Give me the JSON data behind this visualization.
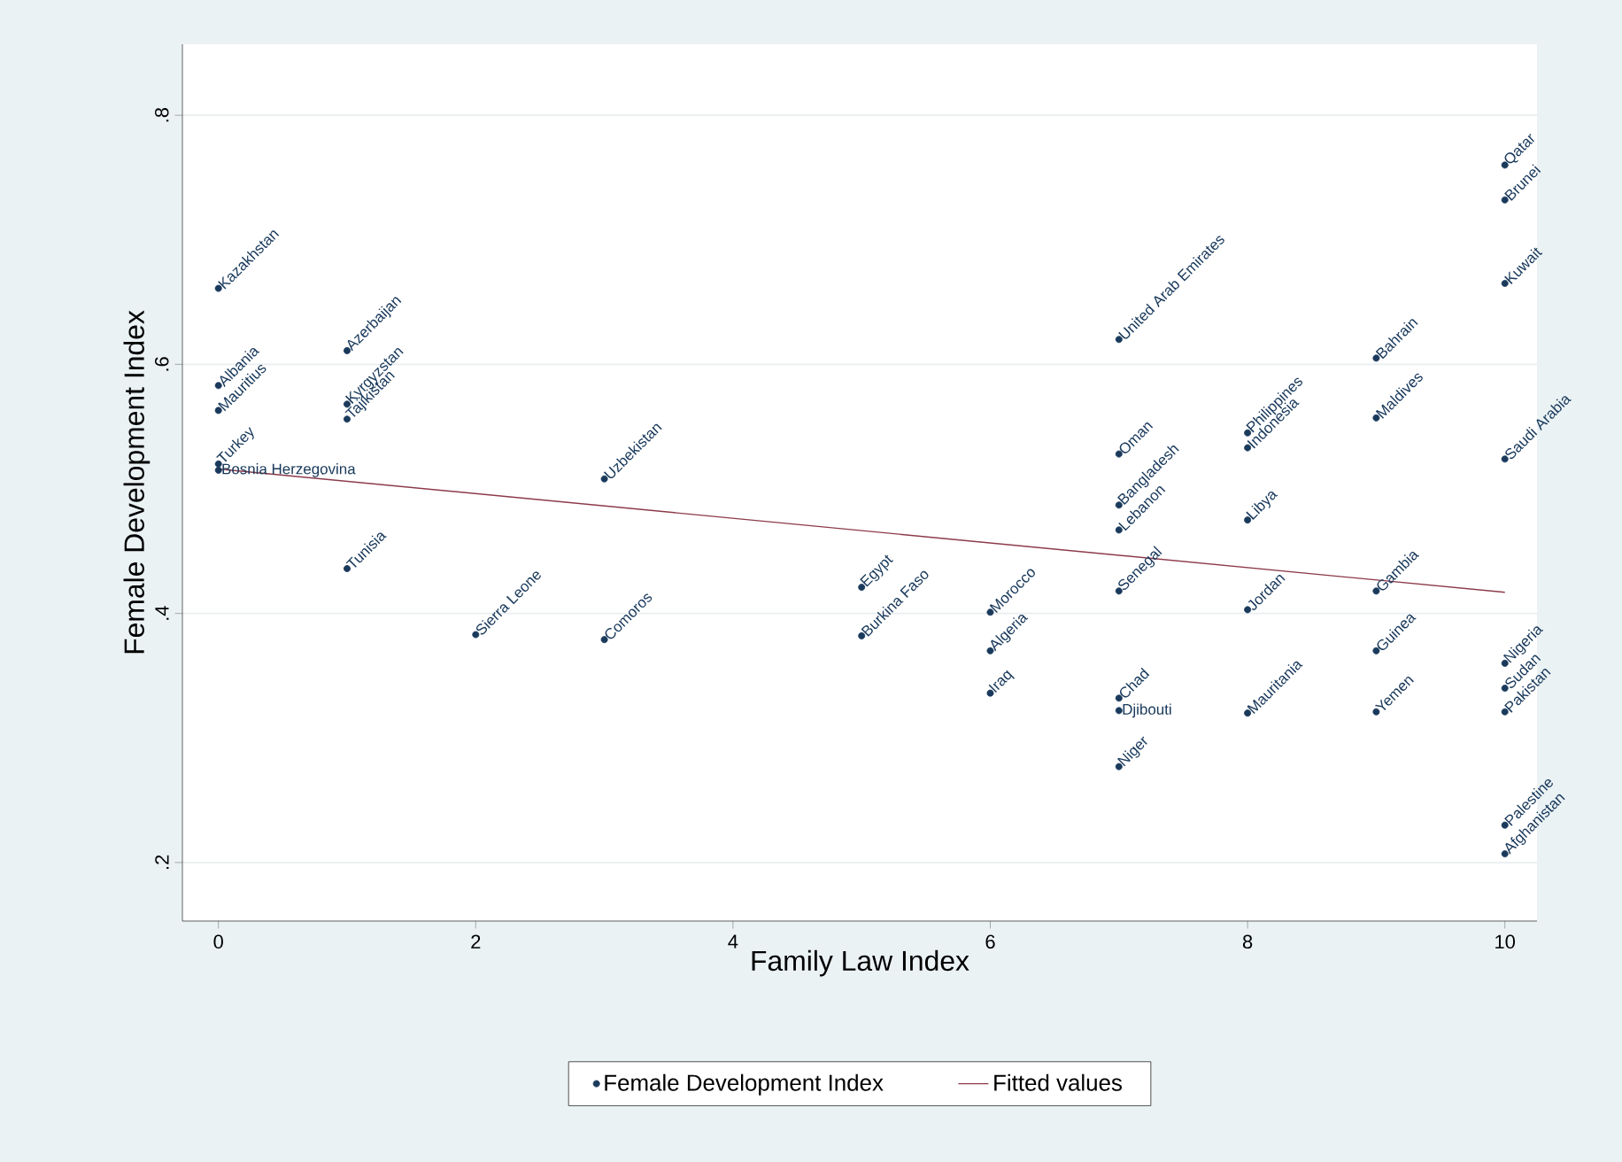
{
  "chart_data": {
    "type": "scatter",
    "xlabel": "Family Law Index",
    "ylabel": "Female Development Index",
    "xlim": [
      -0.28,
      10.25
    ],
    "ylim": [
      0.153,
      0.857
    ],
    "xticks": [
      0,
      2,
      4,
      6,
      8,
      10
    ],
    "yticks": [
      {
        "value": 0.2,
        "label": ".2"
      },
      {
        "value": 0.4,
        "label": ".4"
      },
      {
        "value": 0.6,
        "label": ".6"
      },
      {
        "value": 0.8,
        "label": ".8"
      }
    ],
    "grid": "y",
    "legend": "bottom",
    "series": [
      {
        "name": "Female Development Index",
        "marker": "circle",
        "color": "#1a3a5c",
        "x": [
          0,
          0,
          0,
          0,
          0,
          1,
          1,
          1,
          1,
          2,
          3,
          3,
          5,
          5,
          6,
          6,
          6,
          7,
          7,
          7,
          7,
          7,
          7,
          7,
          7,
          8,
          8,
          8,
          8,
          8,
          9,
          9,
          9,
          9,
          9,
          10,
          10,
          10,
          10,
          10,
          10,
          10,
          10,
          10
        ],
        "values": [
          0.661,
          0.583,
          0.563,
          0.52,
          0.515,
          0.611,
          0.568,
          0.556,
          0.436,
          0.383,
          0.508,
          0.379,
          0.421,
          0.382,
          0.401,
          0.37,
          0.336,
          0.62,
          0.528,
          0.487,
          0.467,
          0.418,
          0.332,
          0.322,
          0.277,
          0.545,
          0.533,
          0.475,
          0.403,
          0.32,
          0.605,
          0.557,
          0.418,
          0.37,
          0.321,
          0.76,
          0.732,
          0.665,
          0.524,
          0.36,
          0.34,
          0.321,
          0.23,
          0.207
        ]
      },
      {
        "name": "Fitted values",
        "type": "line",
        "marker": "none",
        "color": "#8c3a4a",
        "x": [
          0,
          10
        ],
        "values": [
          0.516,
          0.417
        ]
      }
    ],
    "annotations": [
      {
        "text": "Kazakhstan",
        "x": 0,
        "y": 0.661
      },
      {
        "text": "Albania",
        "x": 0,
        "y": 0.583
      },
      {
        "text": "Mauritius",
        "x": 0,
        "y": 0.563
      },
      {
        "text": "Turkey",
        "x": 0,
        "y": 0.52
      },
      {
        "text": "Bosnia Herzegovina",
        "x": 0,
        "y": 0.515
      },
      {
        "text": "Azerbaijan",
        "x": 1,
        "y": 0.611
      },
      {
        "text": "Kyrgyzstan",
        "x": 1,
        "y": 0.568
      },
      {
        "text": "Tajikistan",
        "x": 1,
        "y": 0.556
      },
      {
        "text": "Tunisia",
        "x": 1,
        "y": 0.436
      },
      {
        "text": "Sierra Leone",
        "x": 2,
        "y": 0.383
      },
      {
        "text": "Uzbekistan",
        "x": 3,
        "y": 0.508
      },
      {
        "text": "Comoros",
        "x": 3,
        "y": 0.379
      },
      {
        "text": "Egypt",
        "x": 5,
        "y": 0.421
      },
      {
        "text": "Burkina Faso",
        "x": 5,
        "y": 0.382
      },
      {
        "text": "Morocco",
        "x": 6,
        "y": 0.401
      },
      {
        "text": "Algeria",
        "x": 6,
        "y": 0.37
      },
      {
        "text": "Iraq",
        "x": 6,
        "y": 0.336
      },
      {
        "text": "United Arab Emirates",
        "x": 7,
        "y": 0.62
      },
      {
        "text": "Oman",
        "x": 7,
        "y": 0.528
      },
      {
        "text": "Bangladesh",
        "x": 7,
        "y": 0.487
      },
      {
        "text": "Lebanon",
        "x": 7,
        "y": 0.467
      },
      {
        "text": "Senegal",
        "x": 7,
        "y": 0.418
      },
      {
        "text": "Chad",
        "x": 7,
        "y": 0.332
      },
      {
        "text": "Djibouti",
        "x": 7,
        "y": 0.322
      },
      {
        "text": "Niger",
        "x": 7,
        "y": 0.277
      },
      {
        "text": "Philippines",
        "x": 8,
        "y": 0.545
      },
      {
        "text": "Indonesia",
        "x": 8,
        "y": 0.533
      },
      {
        "text": "Libya",
        "x": 8,
        "y": 0.475
      },
      {
        "text": "Jordan",
        "x": 8,
        "y": 0.403
      },
      {
        "text": "Mauritania",
        "x": 8,
        "y": 0.32
      },
      {
        "text": "Bahrain",
        "x": 9,
        "y": 0.605
      },
      {
        "text": "Maldives",
        "x": 9,
        "y": 0.557
      },
      {
        "text": "Gambia",
        "x": 9,
        "y": 0.418
      },
      {
        "text": "Guinea",
        "x": 9,
        "y": 0.37
      },
      {
        "text": "Yemen",
        "x": 9,
        "y": 0.321
      },
      {
        "text": "Qatar",
        "x": 10,
        "y": 0.76
      },
      {
        "text": "Brunei",
        "x": 10,
        "y": 0.732
      },
      {
        "text": "Kuwait",
        "x": 10,
        "y": 0.665
      },
      {
        "text": "Saudi Arabia",
        "x": 10,
        "y": 0.524
      },
      {
        "text": "Nigeria",
        "x": 10,
        "y": 0.36
      },
      {
        "text": "Sudan",
        "x": 10,
        "y": 0.34
      },
      {
        "text": "Pakistan",
        "x": 10,
        "y": 0.321
      },
      {
        "text": "Palestine",
        "x": 10,
        "y": 0.23
      },
      {
        "text": "Afghanistan",
        "x": 10,
        "y": 0.207
      }
    ]
  }
}
